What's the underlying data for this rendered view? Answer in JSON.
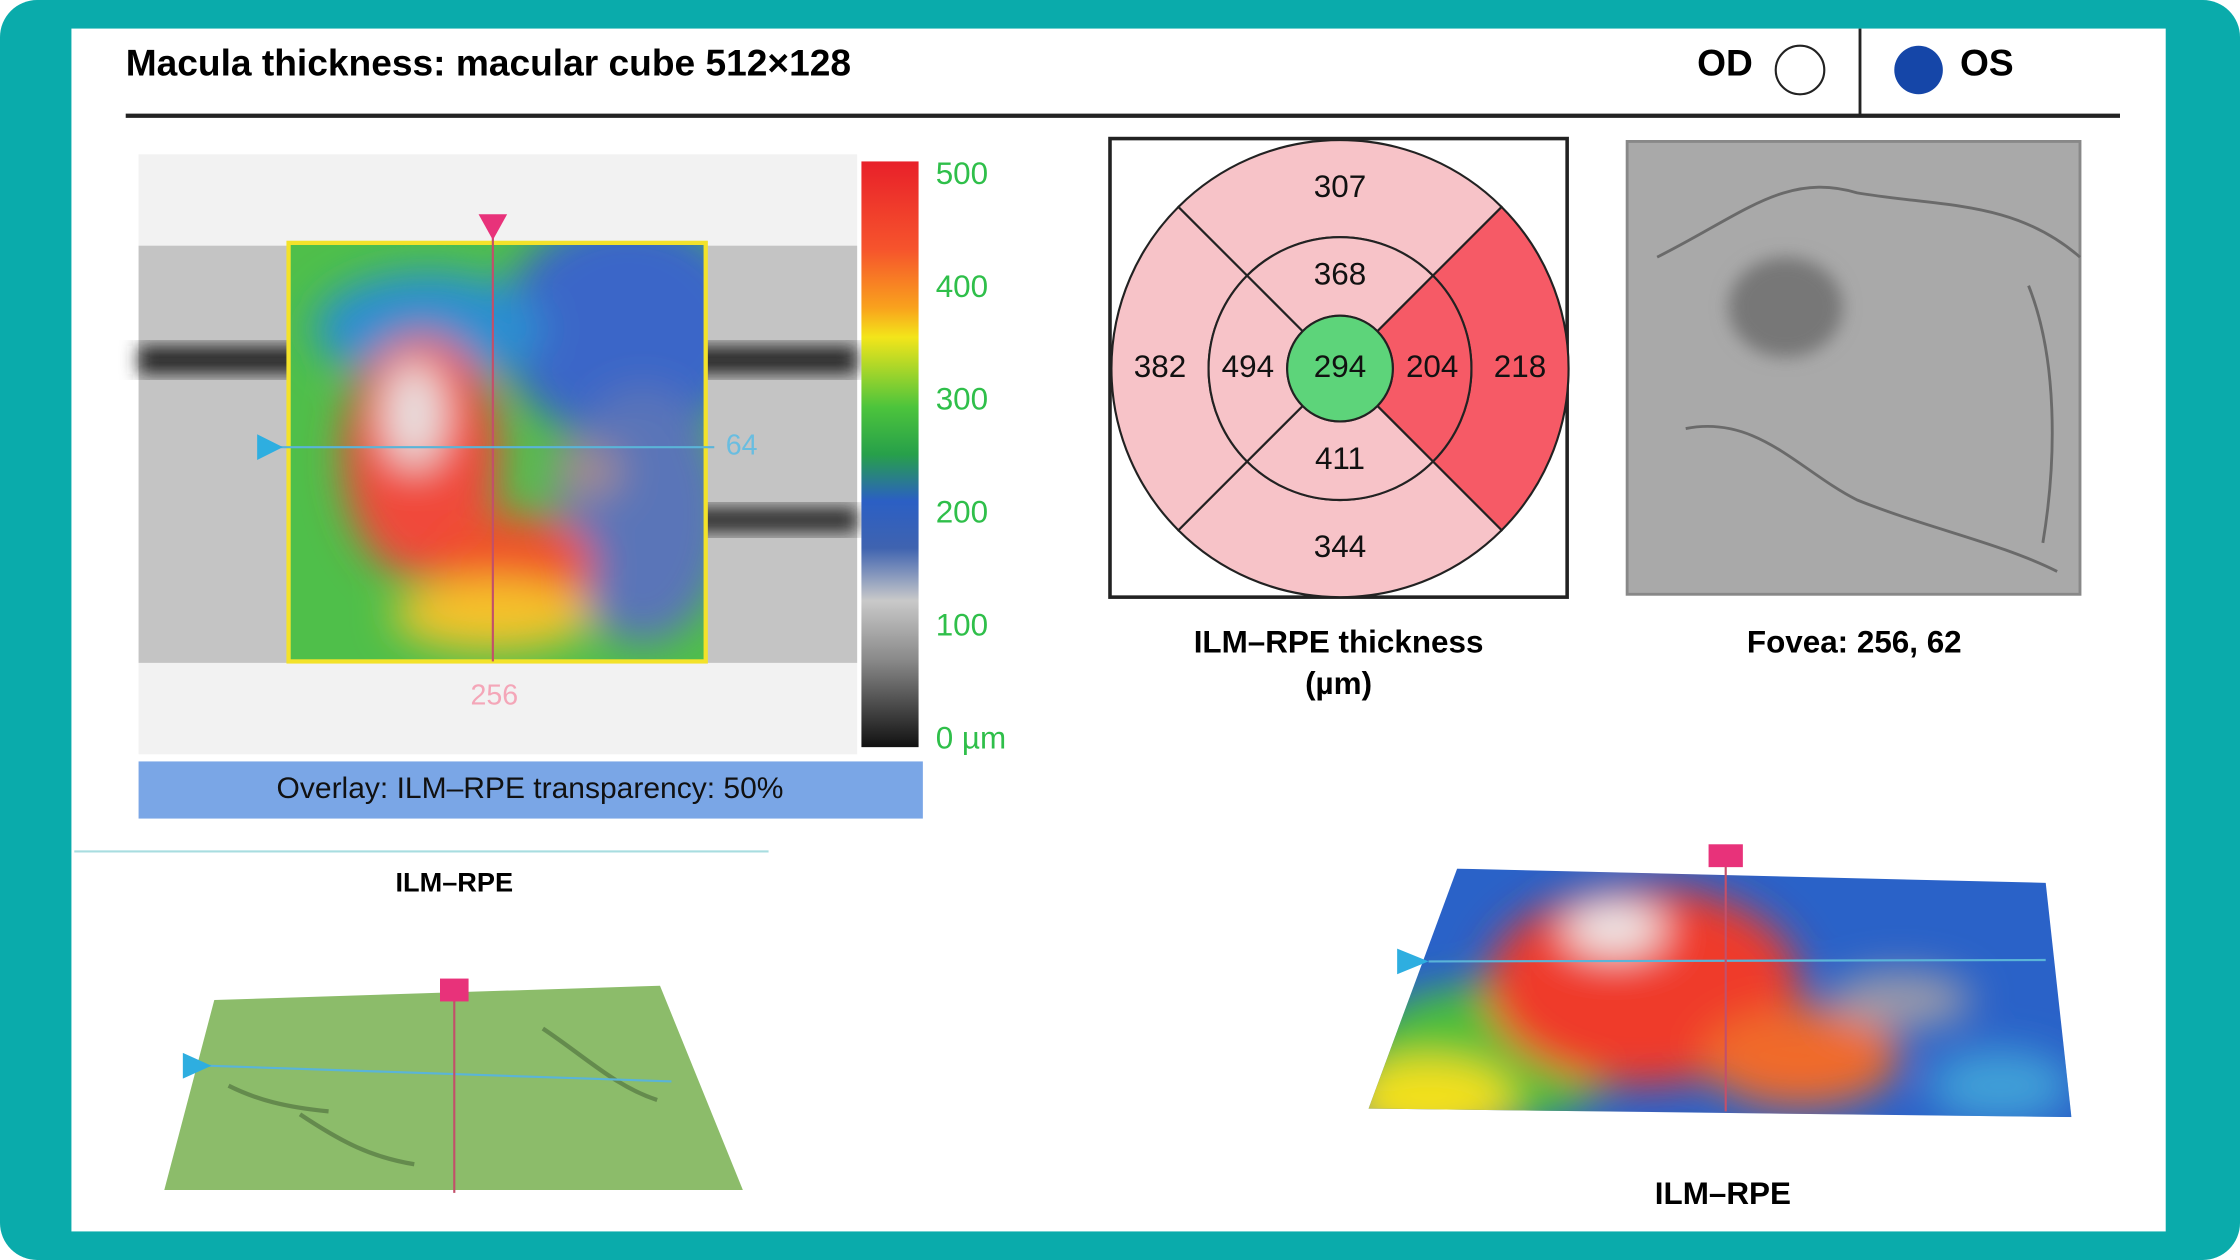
{
  "header": {
    "title": "Macula thickness: macular cube 512×128",
    "od": "OD",
    "os": "OS"
  },
  "thickness_map": {
    "x_label": "256",
    "y_label": "64",
    "scale_ticks": [
      500,
      400,
      300,
      200,
      100,
      {
        "value": 0,
        "label": "0 µm"
      }
    ],
    "caption": "Overlay: ILM–RPE transparency: 50%"
  },
  "grid": {
    "center": {
      "value": 294,
      "color": "#5dd47a"
    },
    "inner": [
      {
        "value": 368,
        "color": "#f7c3c8"
      },
      {
        "value": 204,
        "color": "#f65a66"
      },
      {
        "value": 411,
        "color": "#f7c3c8"
      },
      {
        "value": 494,
        "color": "#f7c3c8"
      }
    ],
    "outer": [
      {
        "value": 307,
        "color": "#f7c3c8"
      },
      {
        "value": 218,
        "color": "#f65a66"
      },
      {
        "value": 344,
        "color": "#f7c3c8"
      },
      {
        "value": 382,
        "color": "#f7c3c8"
      }
    ],
    "caption_line1": "ILM–RPE thickness",
    "caption_line2": "(µm)"
  },
  "fundus": {
    "caption": "Fovea: 256, 62"
  },
  "surface_left": {
    "caption": "ILM–RPE"
  },
  "surface_right": {
    "caption": "ILM–RPE"
  }
}
